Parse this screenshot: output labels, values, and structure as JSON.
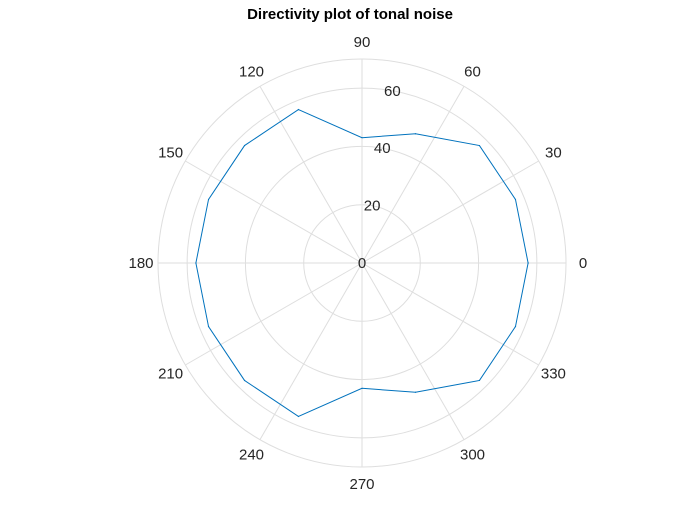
{
  "chart_data": {
    "type": "polar-line",
    "title": "Directivity plot of tonal noise",
    "theta_unit": "degrees",
    "r_range": [
      0,
      70
    ],
    "r_ticks": [
      0,
      20,
      40,
      60
    ],
    "r_tick_labels": [
      "0",
      "20",
      "40",
      "60"
    ],
    "theta_tick_labels": [
      "0",
      "30",
      "60",
      "90",
      "120",
      "150",
      "180",
      "210",
      "240",
      "270",
      "300",
      "330"
    ],
    "grid": true,
    "series": [
      {
        "color": "#0072BD",
        "theta": [
          0,
          22.5,
          45,
          67.5,
          90,
          112.5,
          135,
          157.5,
          180,
          202.5,
          225,
          247.5,
          270,
          292.5,
          315,
          337.5,
          360
        ],
        "r": [
          57,
          57,
          57,
          48,
          43,
          57,
          57,
          57,
          57,
          57,
          57,
          57,
          43,
          48,
          57,
          57,
          57
        ]
      }
    ]
  },
  "colors": {
    "grid": "#dedede",
    "spine": "#dedede",
    "text": "#262626",
    "series": "#0072BD"
  }
}
